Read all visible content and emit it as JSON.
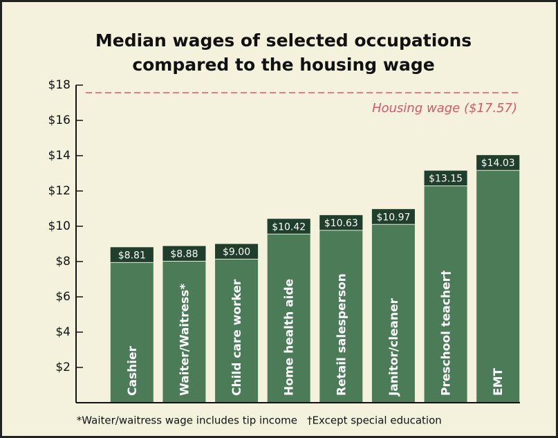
{
  "chart_data": {
    "type": "bar",
    "title": [
      "Median wages of selected occupations",
      "compared to the housing wage"
    ],
    "categories": [
      "Cashier",
      "Waiter/Waitress*",
      "Child care worker",
      "Home health aide",
      "Retail salesperson",
      "Janitor/cleaner",
      "Preschool teacher†",
      "EMT"
    ],
    "values": [
      8.81,
      8.88,
      9.0,
      10.42,
      10.63,
      10.97,
      13.15,
      14.03
    ],
    "value_labels": [
      "$8.81",
      "$8.88",
      "$9.00",
      "$10.42",
      "$10.63",
      "$10.97",
      "$13.15",
      "$14.03"
    ],
    "color": "#4b7b57",
    "cap_color": "#1f3e2b",
    "ylim": [
      0,
      18
    ],
    "yticks": [
      {
        "value": 2,
        "label": "$2"
      },
      {
        "value": 4,
        "label": "$4"
      },
      {
        "value": 6,
        "label": "$6"
      },
      {
        "value": 8,
        "label": "$8"
      },
      {
        "value": 10,
        "label": "$10"
      },
      {
        "value": 12,
        "label": "$12"
      },
      {
        "value": 14,
        "label": "$14"
      },
      {
        "value": 16,
        "label": "$16"
      },
      {
        "value": 18,
        "label": "$18"
      }
    ],
    "reference_line": {
      "value": 17.57,
      "label": "Housing wage ($17.57)",
      "color": "#d4566c"
    },
    "footnotes": [
      "*Waiter/waitress wage includes tip income",
      "†Except special education"
    ]
  }
}
